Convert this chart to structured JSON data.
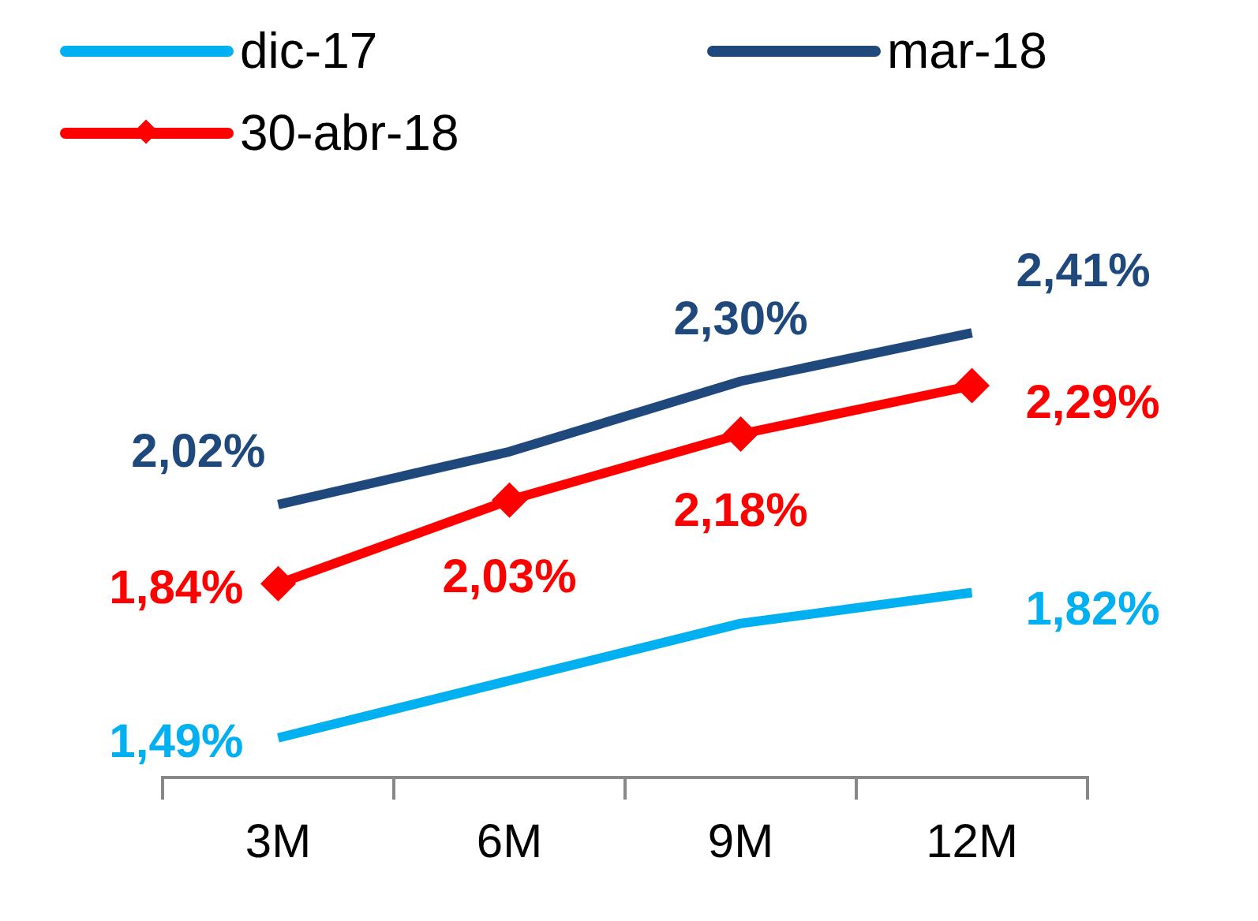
{
  "chart_data": {
    "type": "line",
    "categories": [
      "3M",
      "6M",
      "9M",
      "12M"
    ],
    "series": [
      {
        "name": "dic-17",
        "color": "#00b0f0",
        "values": [
          1.49,
          1.62,
          1.75,
          1.82
        ],
        "value_labels": [
          "1,49%",
          null,
          null,
          "1,82%"
        ],
        "marker": "none"
      },
      {
        "name": "mar-18",
        "color": "#1f497d",
        "values": [
          2.02,
          2.14,
          2.3,
          2.41
        ],
        "value_labels": [
          "2,02%",
          null,
          "2,30%",
          "2,41%"
        ],
        "marker": "none"
      },
      {
        "name": "30-abr-18",
        "color": "#ff0000",
        "values": [
          1.84,
          2.03,
          2.18,
          2.29
        ],
        "value_labels": [
          "1,84%",
          "2,03%",
          "2,18%",
          "2,29%"
        ],
        "marker": "diamond"
      }
    ],
    "legend": "top",
    "grid": false,
    "line_style": "solid"
  }
}
